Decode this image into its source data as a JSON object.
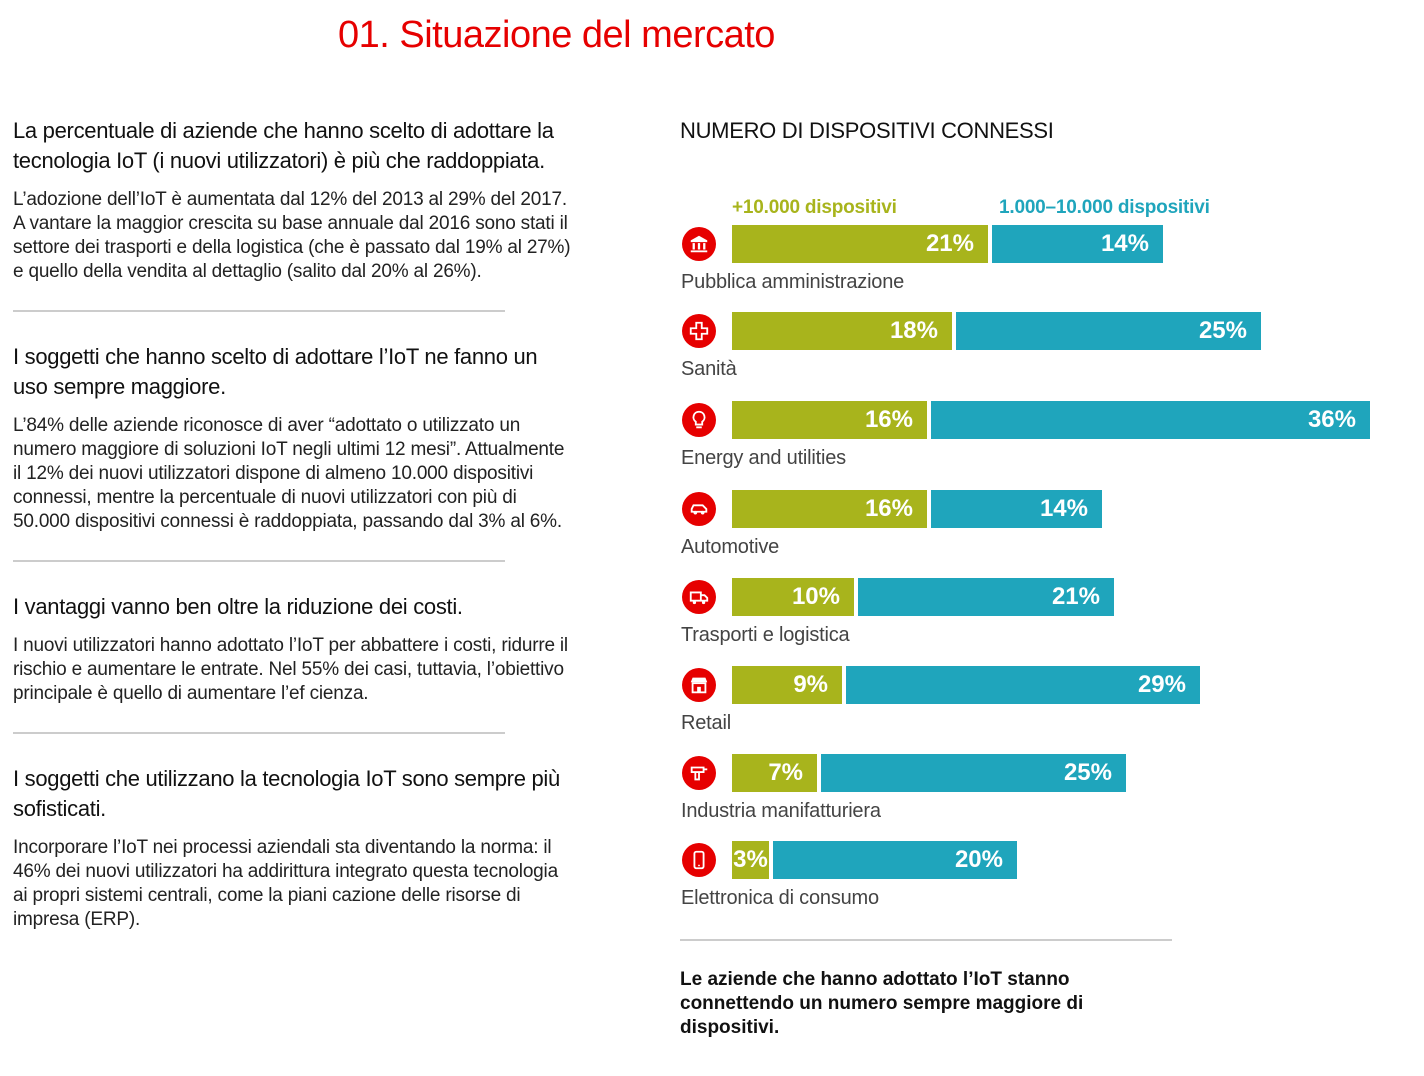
{
  "page_title": "01. Situazione del mercato",
  "sections": [
    {
      "heading": "La percentuale di aziende che hanno scelto di adottare la tecnologia IoT (i nuovi utilizzatori) è più che raddoppiata.",
      "body": "L’adozione dell’IoT è aumentata dal 12% del 2013 al 29% del 2017. A vantare la maggior crescita su base annuale dal 2016 sono stati il settore dei trasporti e della logistica (che è passato dal 19% al 27%) e quello della vendita al dettaglio (salito dal 20% al 26%)."
    },
    {
      "heading": "I soggetti che hanno scelto di adottare l’IoT ne fanno un uso sempre maggiore.",
      "body": "L’84% delle aziende riconosce di aver “adottato o utilizzato un numero maggiore di soluzioni IoT negli ultimi 12 mesi”. Attualmente il 12% dei nuovi utilizzatori dispone di almeno 10.000 dispositivi connessi, mentre la percentuale di nuovi utilizzatori con più di 50.000 dispositivi connessi è raddoppiata, passando dal 3% al 6%."
    },
    {
      "heading": "I vantaggi vanno ben oltre la riduzione dei costi.",
      "body": "I nuovi utilizzatori hanno adottato l’IoT per abbattere i costi, ridurre il rischio e aumentare le entrate. Nel 55% dei casi, tuttavia, l’obiettivo principale è quello di aumentare l’ef cienza."
    },
    {
      "heading": "I soggetti che utilizzano la tecnologia IoT sono sempre più sofisticati.",
      "body": "Incorporare l’IoT nei processi aziendali sta diventando la norma: il 46% dei nuovi utilizzatori ha addirittura integrato questa tecnologia ai propri sistemi centrali, come la piani cazione delle risorse di impresa (ERP)."
    }
  ],
  "chart_data": {
    "type": "bar",
    "orientation": "horizontal-stacked",
    "title": "NUMERO DI DISPOSITIVI CONNESSI",
    "categories": [
      "Pubblica amministrazione",
      "Sanità",
      "Energy and utilities",
      "Automotive",
      "Trasporti e logistica",
      "Retail",
      "Industria manifatturiera",
      "Elettronica di consumo"
    ],
    "icons": [
      "bank-icon",
      "health-cross-icon",
      "lightbulb-icon",
      "car-icon",
      "truck-icon",
      "shop-icon",
      "drill-icon",
      "smartphone-icon"
    ],
    "series": [
      {
        "name": "+10.000 dispositivi",
        "color": "#a8b41c",
        "values": [
          21,
          18,
          16,
          16,
          10,
          9,
          7,
          3
        ],
        "labels": [
          "21%",
          "18%",
          "16%",
          "16%",
          "10%",
          "9%",
          "7%",
          "3%"
        ]
      },
      {
        "name": "1.000–10.000 dispositivi",
        "color": "#1fa5bc",
        "values": [
          14,
          25,
          36,
          14,
          21,
          29,
          25,
          20
        ],
        "labels": [
          "14%",
          "25%",
          "36%",
          "14%",
          "21%",
          "29%",
          "25%",
          "20%"
        ]
      }
    ],
    "legend": "top",
    "xlim": [
      0,
      55
    ]
  },
  "chart_footer": "Le aziende che hanno adottato l’IoT stanno connettendo un numero sempre maggiore di dispositivi.",
  "colors": {
    "accent": "#e60000",
    "divider": "#cccccc"
  }
}
